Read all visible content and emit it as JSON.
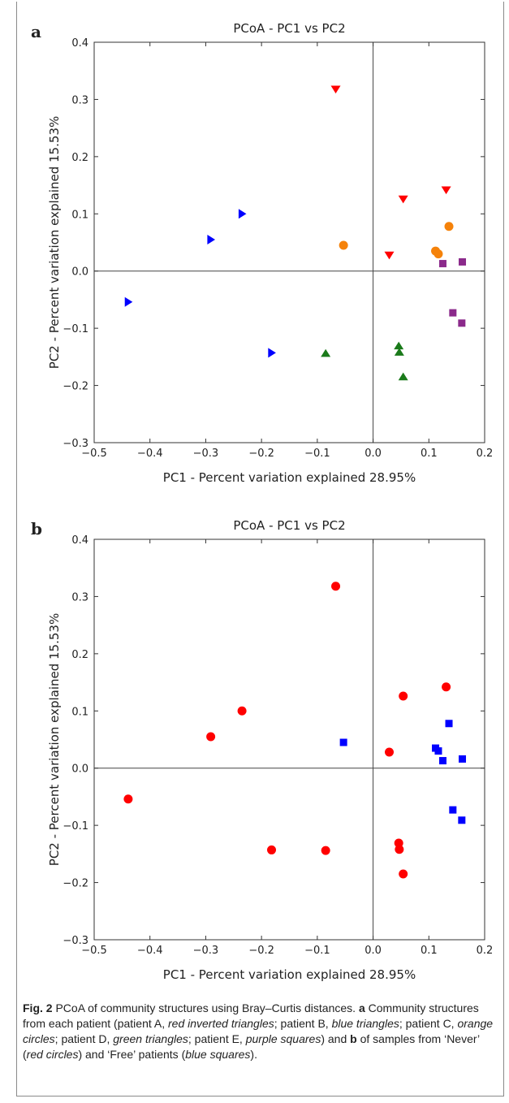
{
  "chart_data": [
    {
      "panel": "a",
      "type": "scatter",
      "title": "PCoA - PC1 vs PC2",
      "xlabel": "PC1 - Percent variation explained 28.95%",
      "ylabel": "PC2 - Percent variation explained 15.53%",
      "xlim": [
        -0.5,
        0.2
      ],
      "ylim": [
        -0.3,
        0.4
      ],
      "xticks": [
        "−0.5",
        "−0.4",
        "−0.3",
        "−0.2",
        "−0.1",
        "0.0",
        "0.1",
        "0.2"
      ],
      "yticks": [
        "−0.3",
        "−0.2",
        "−0.1",
        "0.0",
        "0.1",
        "0.2",
        "0.3",
        "0.4"
      ],
      "grid": false,
      "series": [
        {
          "marker": "triangle-down",
          "color": "#ff0000",
          "points": [
            [
              -0.067,
              0.318
            ],
            [
              0.054,
              0.126
            ],
            [
              0.131,
              0.142
            ],
            [
              0.029,
              0.028
            ]
          ]
        },
        {
          "marker": "triangle-right",
          "color": "#0000ff",
          "points": [
            [
              -0.235,
              0.1
            ],
            [
              -0.291,
              0.055
            ],
            [
              -0.439,
              -0.054
            ],
            [
              -0.182,
              -0.143
            ]
          ]
        },
        {
          "marker": "circle",
          "color": "#f5820a",
          "points": [
            [
              -0.053,
              0.045
            ],
            [
              0.136,
              0.078
            ],
            [
              0.112,
              0.035
            ],
            [
              0.117,
              0.03
            ]
          ]
        },
        {
          "marker": "triangle-up",
          "color": "#1a7a1a",
          "points": [
            [
              -0.085,
              -0.144
            ],
            [
              0.046,
              -0.131
            ],
            [
              0.047,
              -0.142
            ],
            [
              0.054,
              -0.185
            ]
          ]
        },
        {
          "marker": "square",
          "color": "#8b2a8b",
          "points": [
            [
              0.125,
              0.013
            ],
            [
              0.16,
              0.016
            ],
            [
              0.143,
              -0.073
            ],
            [
              0.159,
              -0.091
            ]
          ]
        }
      ]
    },
    {
      "panel": "b",
      "type": "scatter",
      "title": "PCoA - PC1 vs PC2",
      "xlabel": "PC1 - Percent variation explained 28.95%",
      "ylabel": "PC2 - Percent variation explained 15.53%",
      "xlim": [
        -0.5,
        0.2
      ],
      "ylim": [
        -0.3,
        0.4
      ],
      "xticks": [
        "−0.5",
        "−0.4",
        "−0.3",
        "−0.2",
        "−0.1",
        "0.0",
        "0.1",
        "0.2"
      ],
      "yticks": [
        "−0.3",
        "−0.2",
        "−0.1",
        "0.0",
        "0.1",
        "0.2",
        "0.3",
        "0.4"
      ],
      "grid": false,
      "series": [
        {
          "marker": "circle",
          "color": "#ff0000",
          "points": [
            [
              -0.067,
              0.318
            ],
            [
              0.054,
              0.126
            ],
            [
              0.131,
              0.142
            ],
            [
              0.029,
              0.028
            ],
            [
              -0.235,
              0.1
            ],
            [
              -0.291,
              0.055
            ],
            [
              -0.439,
              -0.054
            ],
            [
              -0.182,
              -0.143
            ],
            [
              -0.085,
              -0.144
            ],
            [
              0.046,
              -0.131
            ],
            [
              0.047,
              -0.142
            ],
            [
              0.054,
              -0.185
            ]
          ]
        },
        {
          "marker": "square",
          "color": "#0000ff",
          "points": [
            [
              -0.053,
              0.045
            ],
            [
              0.136,
              0.078
            ],
            [
              0.112,
              0.035
            ],
            [
              0.117,
              0.03
            ],
            [
              0.125,
              0.013
            ],
            [
              0.16,
              0.016
            ],
            [
              0.143,
              -0.073
            ],
            [
              0.159,
              -0.091
            ]
          ]
        }
      ]
    }
  ],
  "caption": {
    "fig_label": "Fig. 2",
    "line1": "PCoA of community structures using Bray–Curtis distances.",
    "a_label": "a",
    "a_text_1": "Community structures from each patient (patient A,",
    "a_red": "red inverted triangles",
    "a_text_2": "; patient B,",
    "a_blue": "blue triangles",
    "a_text_3": "; patient C,",
    "a_orange": "orange circles",
    "a_text_4": "; patient D,",
    "a_green": "green triangles",
    "a_text_5": "; patient E,",
    "a_purple": "purple squares",
    "a_text_6": ") and",
    "b_label": "b",
    "b_text_1": "of samples from ‘Never’ (",
    "b_red": "red circles",
    "b_text_2": ") and ‘Free’ patients (",
    "b_blue": "blue squares",
    "b_text_3": ")."
  }
}
